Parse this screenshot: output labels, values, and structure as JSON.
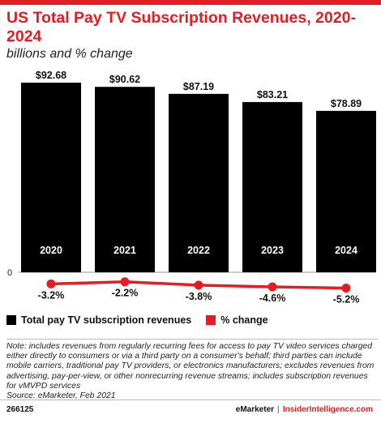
{
  "header": {
    "title": "US Total Pay TV Subscription Revenues, 2020-2024",
    "subtitle": "billions and % change"
  },
  "legend": {
    "bars_label": "Total pay TV subscription revenues",
    "line_label": "% change"
  },
  "colors": {
    "bar": "#000000",
    "line": "#e51c23",
    "accent": "#e51c23"
  },
  "chart_data": {
    "type": "bar",
    "categories": [
      "2020",
      "2021",
      "2022",
      "2023",
      "2024"
    ],
    "series": [
      {
        "name": "Total pay TV subscription revenues",
        "values": [
          92.68,
          90.62,
          87.19,
          83.21,
          78.89
        ],
        "labels": [
          "$92.68",
          "$90.62",
          "$87.19",
          "$83.21",
          "$78.89"
        ]
      },
      {
        "name": "% change",
        "type": "line",
        "values": [
          -3.2,
          -2.2,
          -3.8,
          -4.6,
          -5.2
        ],
        "labels": [
          "-3.2%",
          "-2.2%",
          "-3.8%",
          "-4.6%",
          "-5.2%"
        ]
      }
    ],
    "zero_label": "0"
  },
  "note": {
    "text": "Note: includes revenues from regularly recurring fees for access to pay TV video services charged either directly to consumers or via a third party on a consumer's behalf; third parties can include mobile carriers, traditional pay TV providers, or electronics manufacturers; excludes revenues from advertising, pay-per-view, or other nonrecurring revenue streams; includes subscription revenues for vMVPD services",
    "source": "Source: eMarketer, Feb 2021"
  },
  "footer": {
    "chart_id": "266125",
    "brand_left": "eMarketer",
    "separator": "|",
    "brand_right": "InsiderIntelligence.com"
  }
}
